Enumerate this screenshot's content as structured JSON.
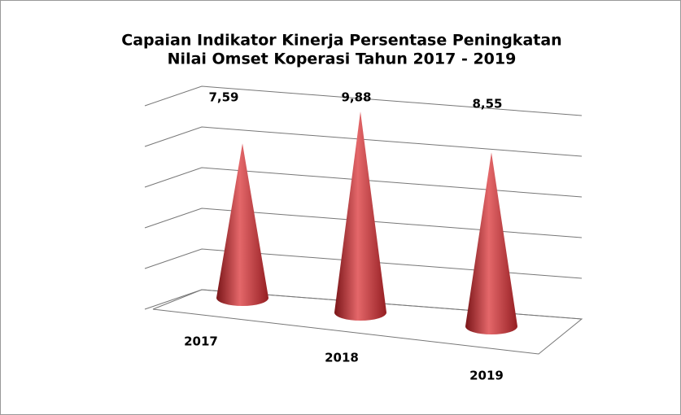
{
  "chart_data": {
    "type": "cone3d",
    "title": [
      "Capaian Indikator Kinerja Persentase Peningkatan",
      "Nilai Omset Koperasi Tahun 2017 - 2019"
    ],
    "categories": [
      "2017",
      "2018",
      "2019"
    ],
    "values": [
      7.59,
      9.88,
      8.55
    ],
    "value_labels": [
      "7,59",
      "9,88",
      "8,55"
    ],
    "color": "#c0393b",
    "ylim": [
      0,
      10
    ],
    "yticks": [
      0,
      2,
      4,
      6,
      8,
      10
    ],
    "grid": true
  }
}
